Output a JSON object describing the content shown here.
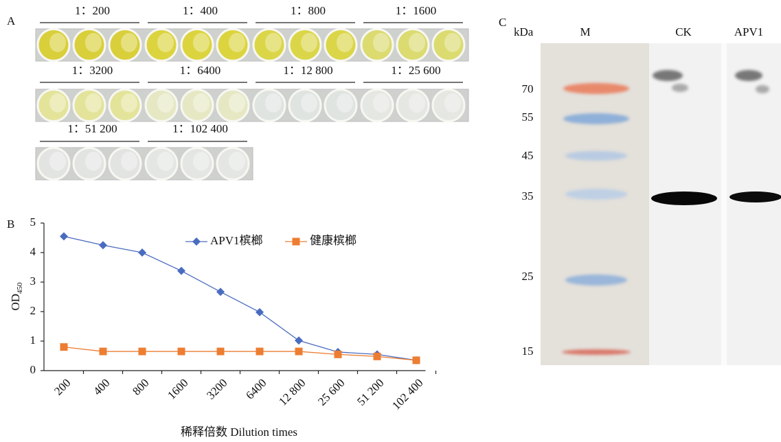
{
  "panel_a": {
    "label": "A",
    "rows": [
      [
        {
          "label": "1：200",
          "color": "#d9cf3a"
        },
        {
          "label": "1：400",
          "color": "#dcd43e"
        },
        {
          "label": "1：800",
          "color": "#dbd648"
        },
        {
          "label": "1：1600",
          "color": "#dbdb70"
        }
      ],
      [
        {
          "label": "1：3200",
          "color": "#e3e39a"
        },
        {
          "label": "1：6400",
          "color": "#e6e8c4"
        },
        {
          "label": "1：12 800",
          "color": "#dfe4e0"
        },
        {
          "label": "1：25 600",
          "color": "#e5e7e2"
        }
      ],
      [
        {
          "label": "1：51 200",
          "color": "#e2e4e2"
        },
        {
          "label": "1：102 400",
          "color": "#e4e6e4"
        }
      ]
    ]
  },
  "chart_data": {
    "type": "line",
    "panel_label": "B",
    "categories": [
      "200",
      "400",
      "800",
      "1600",
      "3200",
      "6400",
      "12 800",
      "25 600",
      "51 200",
      "102 400"
    ],
    "series": [
      {
        "name": "APV1槟榔",
        "color": "#4a6cc0",
        "marker": "diamond",
        "values": [
          4.55,
          4.25,
          4.0,
          3.38,
          2.67,
          1.98,
          1.02,
          0.63,
          0.55,
          0.35
        ]
      },
      {
        "name": "健康槟榔",
        "color": "#ed7d31",
        "marker": "square",
        "values": [
          0.8,
          0.65,
          0.65,
          0.65,
          0.65,
          0.65,
          0.65,
          0.55,
          0.48,
          0.35
        ]
      }
    ],
    "ylim": [
      0,
      5
    ],
    "yticks": [
      0,
      1,
      2,
      3,
      4,
      5
    ],
    "ylabel": "OD",
    "ylabel_subscript": "450",
    "xlabel": "稀释倍数 Dilution times",
    "grid": false
  },
  "panel_c": {
    "label": "C",
    "unit": "kDa",
    "lanes": [
      "M",
      "CK",
      "APV1"
    ],
    "markers": [
      70,
      55,
      45,
      35,
      25,
      15
    ]
  }
}
